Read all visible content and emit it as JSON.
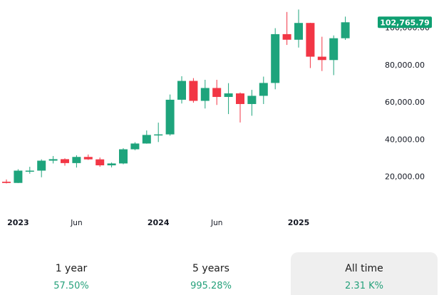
{
  "chart_data": {
    "type": "candlestick",
    "interval": "monthly",
    "colors": {
      "up": "#1ea47c",
      "down": "#f23645",
      "last_price_badge": "#0e9f71",
      "axis_text": "#131722"
    },
    "x_axis_labels": [
      "2023",
      "Jun",
      "2024",
      "Jun",
      "2025"
    ],
    "y_axis_labels": [
      "20,000.00",
      "40,000.00",
      "60,000.00",
      "80,000.00",
      "100,000.00"
    ],
    "ylim": [
      0,
      110000
    ],
    "last_price_label": "102,765.79",
    "candles": [
      {
        "date": "2022-12",
        "open": 17200,
        "high": 18400,
        "low": 16300,
        "close": 16550
      },
      {
        "date": "2023-01",
        "open": 16550,
        "high": 23900,
        "low": 16500,
        "close": 23150
      },
      {
        "date": "2023-02",
        "open": 23150,
        "high": 25200,
        "low": 21500,
        "close": 23150
      },
      {
        "date": "2023-03",
        "open": 23150,
        "high": 29200,
        "low": 19600,
        "close": 28500
      },
      {
        "date": "2023-04",
        "open": 28500,
        "high": 31000,
        "low": 27000,
        "close": 29300
      },
      {
        "date": "2023-05",
        "open": 29300,
        "high": 29800,
        "low": 25800,
        "close": 27200
      },
      {
        "date": "2023-06",
        "open": 27200,
        "high": 31400,
        "low": 24800,
        "close": 30500
      },
      {
        "date": "2023-07",
        "open": 30500,
        "high": 31800,
        "low": 28900,
        "close": 29200
      },
      {
        "date": "2023-08",
        "open": 29200,
        "high": 30200,
        "low": 25200,
        "close": 26000
      },
      {
        "date": "2023-09",
        "open": 26000,
        "high": 27500,
        "low": 24900,
        "close": 27000
      },
      {
        "date": "2023-10",
        "open": 27000,
        "high": 35200,
        "low": 26600,
        "close": 34600
      },
      {
        "date": "2023-11",
        "open": 34600,
        "high": 38400,
        "low": 34100,
        "close": 37700
      },
      {
        "date": "2023-12",
        "open": 37700,
        "high": 44700,
        "low": 37600,
        "close": 42300
      },
      {
        "date": "2024-01",
        "open": 42300,
        "high": 48900,
        "low": 38500,
        "close": 42600
      },
      {
        "date": "2024-02",
        "open": 42600,
        "high": 64000,
        "low": 41900,
        "close": 61200
      },
      {
        "date": "2024-03",
        "open": 61200,
        "high": 73800,
        "low": 59200,
        "close": 71300
      },
      {
        "date": "2024-04",
        "open": 71300,
        "high": 72800,
        "low": 59600,
        "close": 60600
      },
      {
        "date": "2024-05",
        "open": 60600,
        "high": 71900,
        "low": 56500,
        "close": 67500
      },
      {
        "date": "2024-06",
        "open": 67500,
        "high": 71900,
        "low": 58400,
        "close": 62700
      },
      {
        "date": "2024-07",
        "open": 62700,
        "high": 70100,
        "low": 53500,
        "close": 64600
      },
      {
        "date": "2024-08",
        "open": 64600,
        "high": 65100,
        "low": 49000,
        "close": 58900
      },
      {
        "date": "2024-09",
        "open": 58900,
        "high": 66500,
        "low": 52600,
        "close": 63300
      },
      {
        "date": "2024-10",
        "open": 63300,
        "high": 73600,
        "low": 58900,
        "close": 70200
      },
      {
        "date": "2024-11",
        "open": 70200,
        "high": 99600,
        "low": 66800,
        "close": 96400
      },
      {
        "date": "2024-12",
        "open": 96400,
        "high": 108300,
        "low": 90600,
        "close": 93400
      },
      {
        "date": "2025-01",
        "open": 93400,
        "high": 109600,
        "low": 89200,
        "close": 102400
      },
      {
        "date": "2025-02",
        "open": 102400,
        "high": 102500,
        "low": 78200,
        "close": 84300
      },
      {
        "date": "2025-03",
        "open": 84300,
        "high": 95000,
        "low": 76600,
        "close": 82500
      },
      {
        "date": "2025-04",
        "open": 82500,
        "high": 95700,
        "low": 74400,
        "close": 94200
      },
      {
        "date": "2025-05",
        "open": 94200,
        "high": 105800,
        "low": 93300,
        "close": 102765.79
      }
    ]
  },
  "performance_tabs": [
    {
      "label": "1 year",
      "value": "57.50%"
    },
    {
      "label": "5 years",
      "value": "995.28%"
    },
    {
      "label": "All time",
      "value": "2.31 K%"
    }
  ]
}
